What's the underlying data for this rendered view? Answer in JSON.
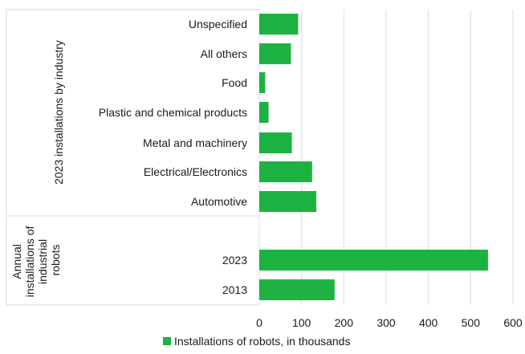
{
  "chart_data": {
    "type": "bar",
    "orientation": "horizontal",
    "grid": true,
    "legend_position": "bottom-center",
    "xlim": [
      0,
      600
    ],
    "xticks": [
      "0",
      "100",
      "200",
      "300",
      "400",
      "500",
      "600"
    ],
    "xtick_values": [
      0,
      100,
      200,
      300,
      400,
      500,
      600
    ],
    "groups": [
      {
        "label": "2023 installations by industry",
        "categories": [
          "Unspecified",
          "All others",
          "Food",
          "Plastic and chemical products",
          "Metal and machinery",
          "Electrical/Electronics",
          "Automotive"
        ]
      },
      {
        "label": "Annual installations of industrial robots",
        "label_lines": [
          "Annual",
          "installations of",
          "industrial",
          "robots"
        ],
        "categories": [
          "2023",
          "2013"
        ]
      }
    ],
    "categories": [
      "Unspecified",
      "All others",
      "Food",
      "Plastic and chemical products",
      "Metal and machinery",
      "Electrical/Electronics",
      "Automotive",
      "2023",
      "2013"
    ],
    "series": [
      {
        "name": "Installations of robots, in thousands",
        "color": "#1db342",
        "values": [
          92,
          75,
          14,
          22,
          77,
          125,
          135,
          541,
          178
        ]
      }
    ]
  }
}
